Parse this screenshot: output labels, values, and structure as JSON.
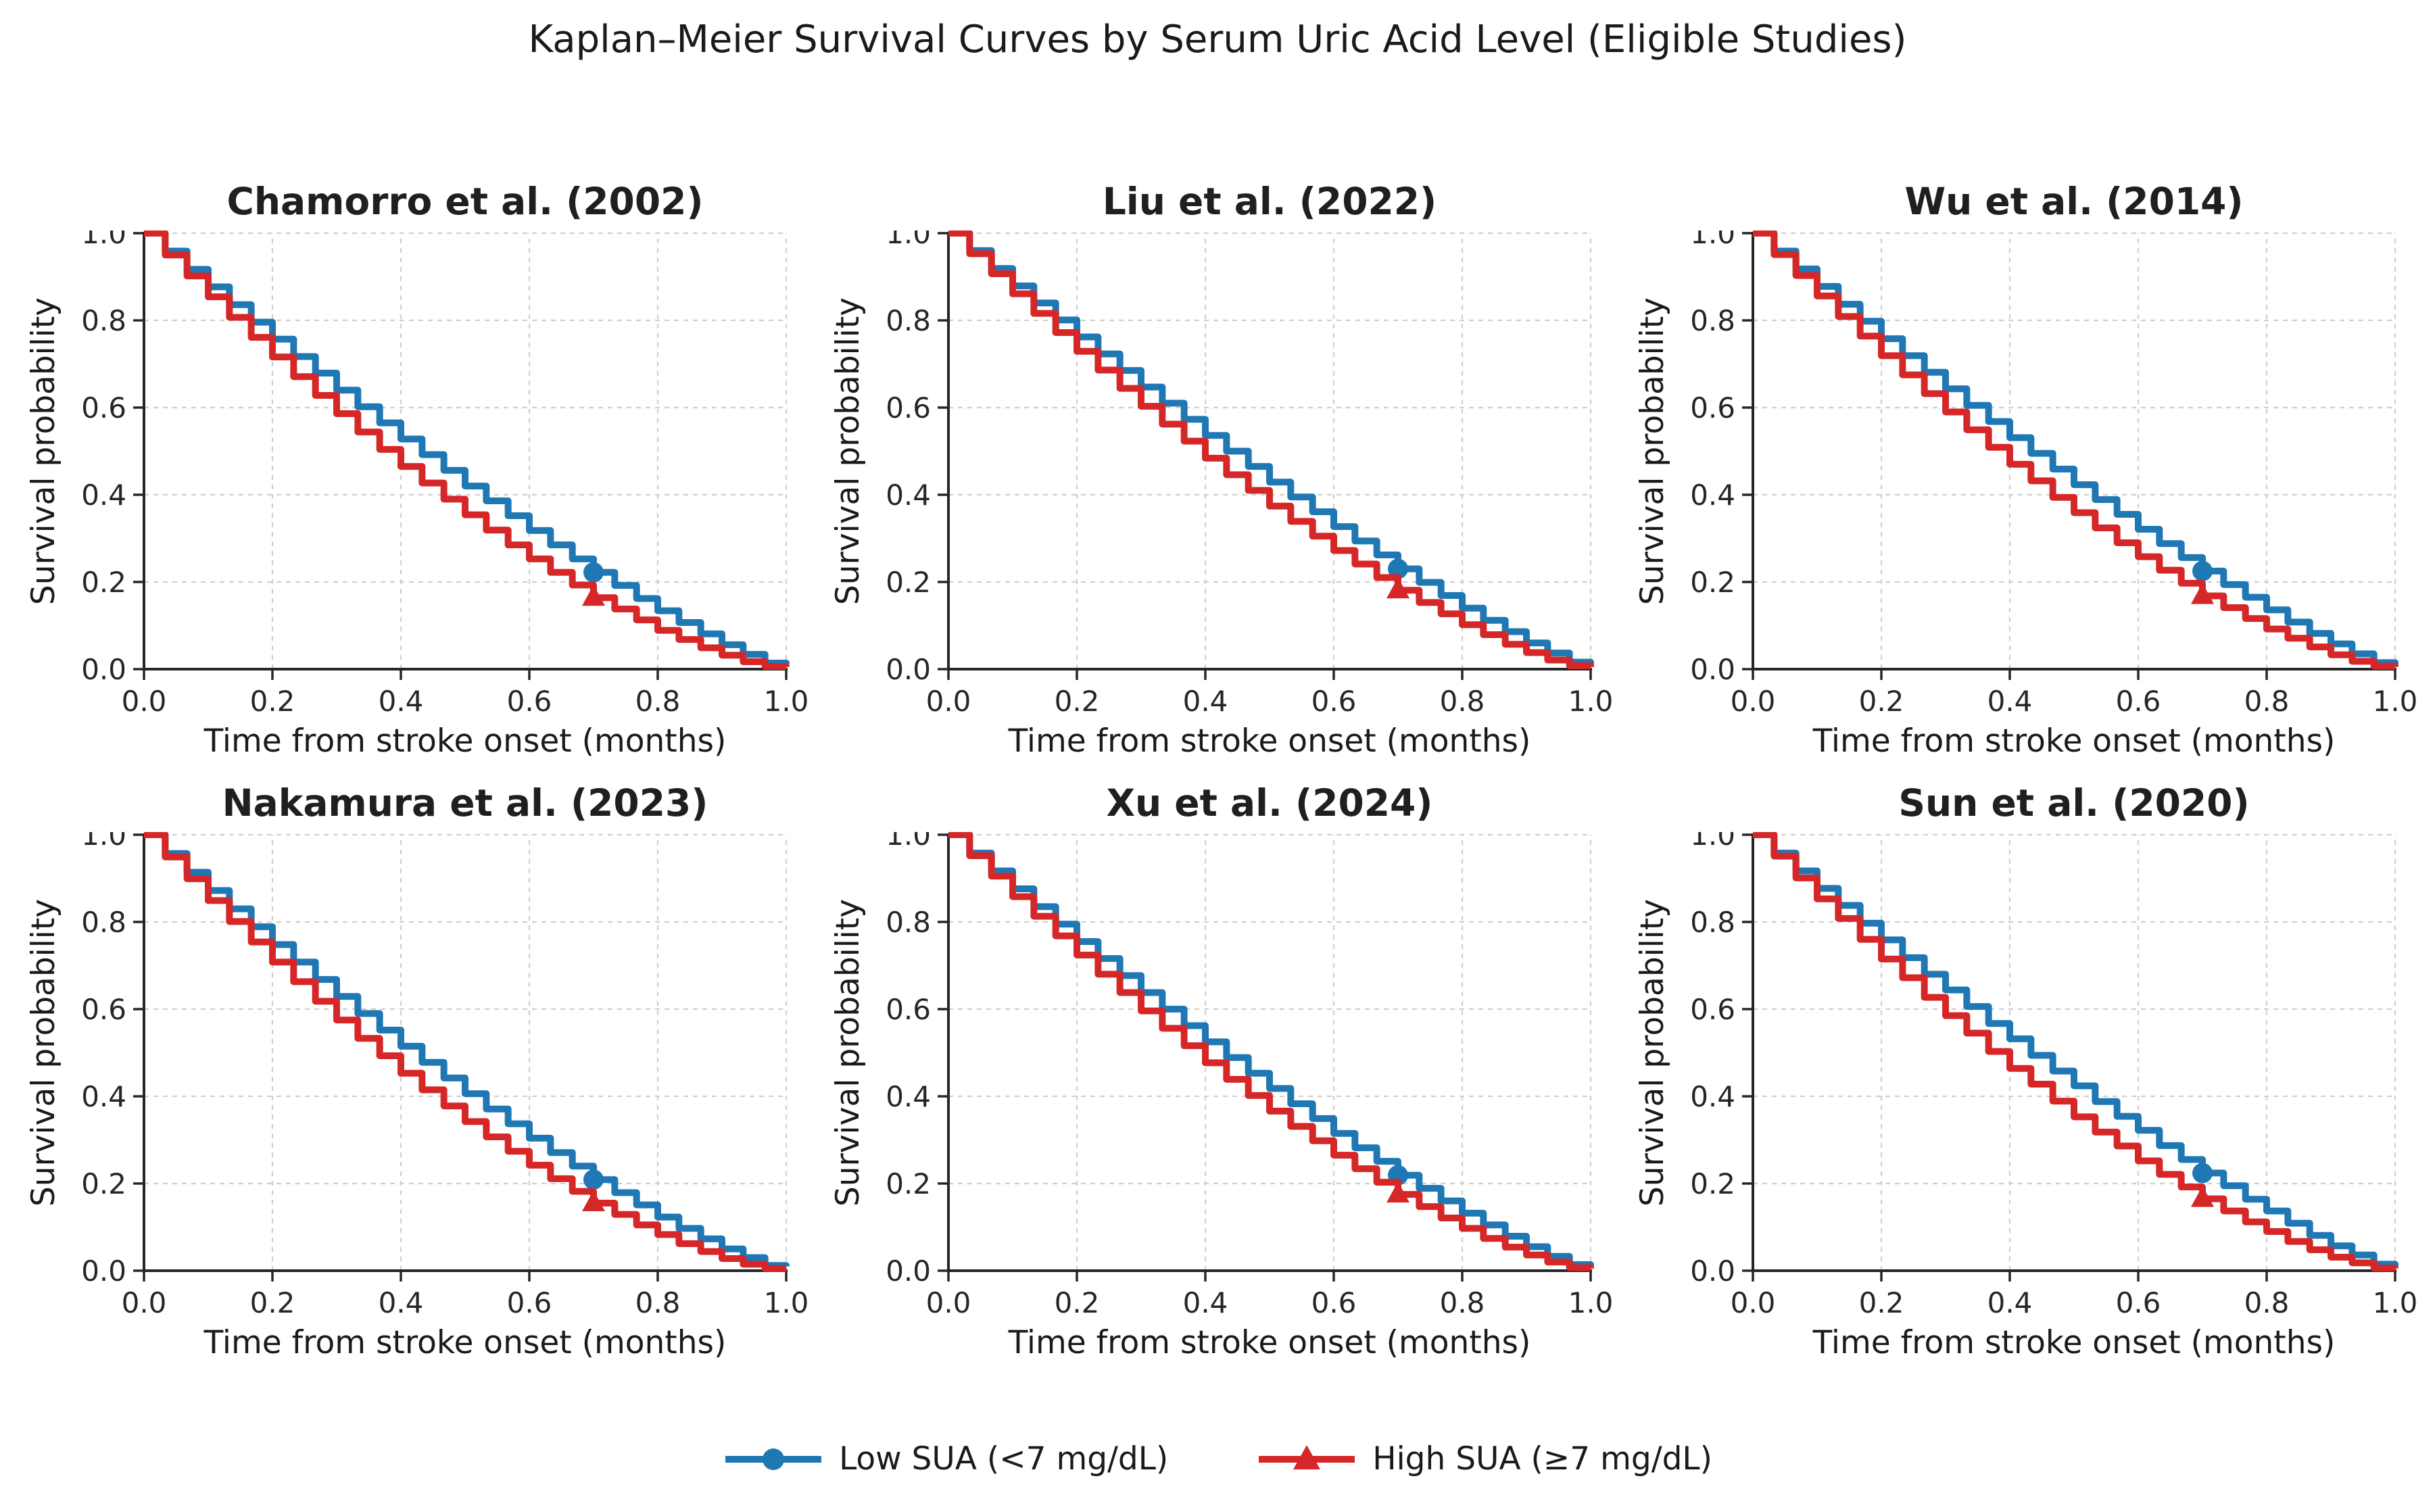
{
  "figure": {
    "suptitle": "Kaplan–Meier Survival Curves by Serum Uric Acid Level (Eligible Studies)"
  },
  "axes_defaults": {
    "xlabel": "Time from stroke onset (months)",
    "ylabel": "Survival probability",
    "xlim": [
      0,
      1
    ],
    "ylim": [
      0,
      1
    ],
    "grid": true,
    "grid_style": "dashed",
    "xticks": {
      "values": [
        0,
        0.2,
        0.4,
        0.6,
        0.8,
        1.0
      ],
      "labels": [
        "0.0",
        "0.2",
        "0.4",
        "0.6",
        "0.8",
        "1.0"
      ]
    },
    "yticks": {
      "values": [
        0,
        0.2,
        0.4,
        0.6,
        0.8,
        1.0
      ],
      "labels": [
        "0.0",
        "0.2",
        "0.4",
        "0.6",
        "0.8",
        "1.0"
      ]
    }
  },
  "legend": {
    "position": "bottom-center",
    "items": [
      {
        "label": "Low SUA (<7 mg/dL)",
        "color": "#1f77b4",
        "marker": "circle"
      },
      {
        "label": "High SUA (≥7 mg/dL)",
        "color": "#d62728",
        "marker": "triangle"
      }
    ]
  },
  "chart_data": [
    {
      "type": "line",
      "step": true,
      "title": "Chamorro et al. (2002)",
      "xlabel": "Time from stroke onset (months)",
      "ylabel": "Survival probability",
      "xlim": [
        0,
        1
      ],
      "ylim": [
        0,
        1
      ],
      "x": [
        0,
        0.033,
        0.067,
        0.1,
        0.133,
        0.167,
        0.2,
        0.233,
        0.267,
        0.3,
        0.333,
        0.367,
        0.4,
        0.433,
        0.467,
        0.5,
        0.533,
        0.567,
        0.6,
        0.633,
        0.667,
        0.7,
        0.733,
        0.767,
        0.8,
        0.833,
        0.867,
        0.9,
        0.933,
        0.967,
        1.0
      ],
      "series": [
        {
          "id": "low-sua",
          "name": "Low SUA (<7 mg/dL)",
          "color": "#1f77b4",
          "marker": "circle",
          "marker_x": 0.7,
          "values": [
            1.0,
            0.959,
            0.917,
            0.877,
            0.836,
            0.796,
            0.757,
            0.717,
            0.679,
            0.64,
            0.602,
            0.565,
            0.528,
            0.492,
            0.456,
            0.42,
            0.386,
            0.352,
            0.318,
            0.285,
            0.253,
            0.222,
            0.192,
            0.162,
            0.134,
            0.107,
            0.081,
            0.056,
            0.034,
            0.014,
            0.01
          ]
        },
        {
          "id": "high-sua",
          "name": "High SUA (≥7 mg/dL)",
          "color": "#d62728",
          "marker": "triangle",
          "marker_x": 0.7,
          "values": [
            1.0,
            0.95,
            0.902,
            0.854,
            0.807,
            0.761,
            0.716,
            0.671,
            0.628,
            0.586,
            0.544,
            0.504,
            0.465,
            0.427,
            0.39,
            0.354,
            0.319,
            0.285,
            0.253,
            0.222,
            0.193,
            0.164,
            0.138,
            0.113,
            0.089,
            0.068,
            0.049,
            0.032,
            0.017,
            0.006,
            0.005
          ]
        }
      ]
    },
    {
      "type": "line",
      "step": true,
      "title": "Liu et al. (2022)",
      "xlabel": "Time from stroke onset (months)",
      "ylabel": "Survival probability",
      "xlim": [
        0,
        1
      ],
      "ylim": [
        0,
        1
      ],
      "x": [
        0,
        0.033,
        0.067,
        0.1,
        0.133,
        0.167,
        0.2,
        0.233,
        0.267,
        0.3,
        0.333,
        0.367,
        0.4,
        0.433,
        0.467,
        0.5,
        0.533,
        0.567,
        0.6,
        0.633,
        0.667,
        0.7,
        0.733,
        0.767,
        0.8,
        0.833,
        0.867,
        0.9,
        0.933,
        0.967,
        1.0
      ],
      "series": [
        {
          "id": "low-sua",
          "name": "Low SUA (<7 mg/dL)",
          "color": "#1f77b4",
          "marker": "circle",
          "marker_x": 0.7,
          "values": [
            1.0,
            0.96,
            0.919,
            0.879,
            0.84,
            0.801,
            0.762,
            0.723,
            0.685,
            0.647,
            0.61,
            0.573,
            0.536,
            0.5,
            0.465,
            0.429,
            0.395,
            0.361,
            0.327,
            0.294,
            0.262,
            0.23,
            0.199,
            0.169,
            0.14,
            0.112,
            0.086,
            0.06,
            0.037,
            0.016,
            0.01
          ]
        },
        {
          "id": "high-sua",
          "name": "High SUA (≥7 mg/dL)",
          "color": "#d62728",
          "marker": "triangle",
          "marker_x": 0.7,
          "values": [
            1.0,
            0.953,
            0.907,
            0.861,
            0.816,
            0.772,
            0.729,
            0.686,
            0.644,
            0.603,
            0.562,
            0.523,
            0.484,
            0.446,
            0.41,
            0.374,
            0.339,
            0.305,
            0.272,
            0.241,
            0.21,
            0.181,
            0.153,
            0.127,
            0.102,
            0.079,
            0.057,
            0.038,
            0.021,
            0.008,
            0.005
          ]
        }
      ]
    },
    {
      "type": "line",
      "step": true,
      "title": "Wu et al. (2014)",
      "xlabel": "Time from stroke onset (months)",
      "ylabel": "Survival probability",
      "xlim": [
        0,
        1
      ],
      "ylim": [
        0,
        1
      ],
      "x": [
        0,
        0.033,
        0.067,
        0.1,
        0.133,
        0.167,
        0.2,
        0.233,
        0.267,
        0.3,
        0.333,
        0.367,
        0.4,
        0.433,
        0.467,
        0.5,
        0.533,
        0.567,
        0.6,
        0.633,
        0.667,
        0.7,
        0.733,
        0.767,
        0.8,
        0.833,
        0.867,
        0.9,
        0.933,
        0.967,
        1.0
      ],
      "series": [
        {
          "id": "low-sua",
          "name": "Low SUA (<7 mg/dL)",
          "color": "#1f77b4",
          "marker": "circle",
          "marker_x": 0.7,
          "values": [
            1.0,
            0.959,
            0.918,
            0.878,
            0.837,
            0.798,
            0.758,
            0.719,
            0.681,
            0.643,
            0.605,
            0.568,
            0.531,
            0.495,
            0.459,
            0.423,
            0.389,
            0.355,
            0.321,
            0.288,
            0.256,
            0.225,
            0.194,
            0.165,
            0.136,
            0.108,
            0.082,
            0.058,
            0.035,
            0.015,
            0.01
          ]
        },
        {
          "id": "high-sua",
          "name": "High SUA (≥7 mg/dL)",
          "color": "#d62728",
          "marker": "triangle",
          "marker_x": 0.7,
          "values": [
            1.0,
            0.951,
            0.903,
            0.856,
            0.809,
            0.764,
            0.719,
            0.675,
            0.632,
            0.59,
            0.549,
            0.509,
            0.47,
            0.432,
            0.394,
            0.359,
            0.324,
            0.29,
            0.258,
            0.227,
            0.197,
            0.168,
            0.141,
            0.116,
            0.092,
            0.071,
            0.051,
            0.033,
            0.018,
            0.007,
            0.005
          ]
        }
      ]
    },
    {
      "type": "line",
      "step": true,
      "title": "Nakamura et al. (2023)",
      "xlabel": "Time from stroke onset (months)",
      "ylabel": "Survival probability",
      "xlim": [
        0,
        1
      ],
      "ylim": [
        0,
        1
      ],
      "x": [
        0,
        0.033,
        0.067,
        0.1,
        0.133,
        0.167,
        0.2,
        0.233,
        0.267,
        0.3,
        0.333,
        0.367,
        0.4,
        0.433,
        0.467,
        0.5,
        0.533,
        0.567,
        0.6,
        0.633,
        0.667,
        0.7,
        0.733,
        0.767,
        0.8,
        0.833,
        0.867,
        0.9,
        0.933,
        0.967,
        1.0
      ],
      "series": [
        {
          "id": "low-sua",
          "name": "Low SUA (<7 mg/dL)",
          "color": "#1f77b4",
          "marker": "circle",
          "marker_x": 0.7,
          "values": [
            1.0,
            0.957,
            0.914,
            0.872,
            0.83,
            0.789,
            0.748,
            0.708,
            0.668,
            0.629,
            0.59,
            0.552,
            0.515,
            0.478,
            0.442,
            0.406,
            0.371,
            0.337,
            0.304,
            0.271,
            0.24,
            0.209,
            0.179,
            0.151,
            0.123,
            0.097,
            0.073,
            0.05,
            0.03,
            0.012,
            0.01
          ]
        },
        {
          "id": "high-sua",
          "name": "High SUA (≥7 mg/dL)",
          "color": "#d62728",
          "marker": "triangle",
          "marker_x": 0.7,
          "values": [
            1.0,
            0.949,
            0.899,
            0.849,
            0.801,
            0.754,
            0.708,
            0.663,
            0.618,
            0.575,
            0.533,
            0.493,
            0.453,
            0.415,
            0.378,
            0.342,
            0.307,
            0.274,
            0.242,
            0.211,
            0.182,
            0.155,
            0.129,
            0.105,
            0.083,
            0.062,
            0.044,
            0.028,
            0.015,
            0.005,
            0.005
          ]
        }
      ]
    },
    {
      "type": "line",
      "step": true,
      "title": "Xu et al. (2024)",
      "xlabel": "Time from stroke onset (months)",
      "ylabel": "Survival probability",
      "xlim": [
        0,
        1
      ],
      "ylim": [
        0,
        1
      ],
      "x": [
        0,
        0.033,
        0.067,
        0.1,
        0.133,
        0.167,
        0.2,
        0.233,
        0.267,
        0.3,
        0.333,
        0.367,
        0.4,
        0.433,
        0.467,
        0.5,
        0.533,
        0.567,
        0.6,
        0.633,
        0.667,
        0.7,
        0.733,
        0.767,
        0.8,
        0.833,
        0.867,
        0.9,
        0.933,
        0.967,
        1.0
      ],
      "series": [
        {
          "id": "low-sua",
          "name": "Low SUA (<7 mg/dL)",
          "color": "#1f77b4",
          "marker": "circle",
          "marker_x": 0.7,
          "values": [
            1.0,
            0.958,
            0.917,
            0.876,
            0.835,
            0.795,
            0.755,
            0.716,
            0.677,
            0.638,
            0.6,
            0.562,
            0.525,
            0.489,
            0.453,
            0.418,
            0.383,
            0.349,
            0.315,
            0.282,
            0.251,
            0.219,
            0.189,
            0.16,
            0.132,
            0.105,
            0.079,
            0.055,
            0.033,
            0.014,
            0.01
          ]
        },
        {
          "id": "high-sua",
          "name": "High SUA (≥7 mg/dL)",
          "color": "#d62728",
          "marker": "triangle",
          "marker_x": 0.7,
          "values": [
            1.0,
            0.952,
            0.905,
            0.858,
            0.813,
            0.768,
            0.724,
            0.68,
            0.638,
            0.596,
            0.556,
            0.516,
            0.477,
            0.439,
            0.402,
            0.366,
            0.331,
            0.298,
            0.265,
            0.234,
            0.203,
            0.175,
            0.147,
            0.121,
            0.097,
            0.074,
            0.054,
            0.036,
            0.02,
            0.007,
            0.005
          ]
        }
      ]
    },
    {
      "type": "line",
      "step": true,
      "title": "Sun et al. (2020)",
      "xlabel": "Time from stroke onset (months)",
      "ylabel": "Survival probability",
      "xlim": [
        0,
        1
      ],
      "ylim": [
        0,
        1
      ],
      "x": [
        0,
        0.033,
        0.067,
        0.1,
        0.133,
        0.167,
        0.2,
        0.233,
        0.267,
        0.3,
        0.333,
        0.367,
        0.4,
        0.433,
        0.467,
        0.5,
        0.533,
        0.567,
        0.6,
        0.633,
        0.667,
        0.7,
        0.733,
        0.767,
        0.8,
        0.833,
        0.867,
        0.9,
        0.933,
        0.967,
        1.0
      ],
      "series": [
        {
          "id": "low-sua",
          "name": "Low SUA (<7 mg/dL)",
          "color": "#1f77b4",
          "marker": "circle",
          "marker_x": 0.7,
          "values": [
            1.0,
            0.958,
            0.917,
            0.877,
            0.838,
            0.797,
            0.759,
            0.718,
            0.68,
            0.644,
            0.606,
            0.567,
            0.532,
            0.494,
            0.458,
            0.424,
            0.388,
            0.354,
            0.322,
            0.287,
            0.255,
            0.224,
            0.195,
            0.164,
            0.137,
            0.109,
            0.081,
            0.057,
            0.036,
            0.015,
            0.01
          ]
        },
        {
          "id": "high-sua",
          "name": "High SUA (≥7 mg/dL)",
          "color": "#d62728",
          "marker": "triangle",
          "marker_x": 0.7,
          "values": [
            1.0,
            0.951,
            0.901,
            0.853,
            0.808,
            0.76,
            0.715,
            0.672,
            0.627,
            0.585,
            0.545,
            0.503,
            0.464,
            0.428,
            0.389,
            0.353,
            0.318,
            0.286,
            0.252,
            0.221,
            0.192,
            0.165,
            0.137,
            0.112,
            0.09,
            0.067,
            0.048,
            0.031,
            0.018,
            0.006,
            0.005
          ]
        }
      ]
    }
  ]
}
